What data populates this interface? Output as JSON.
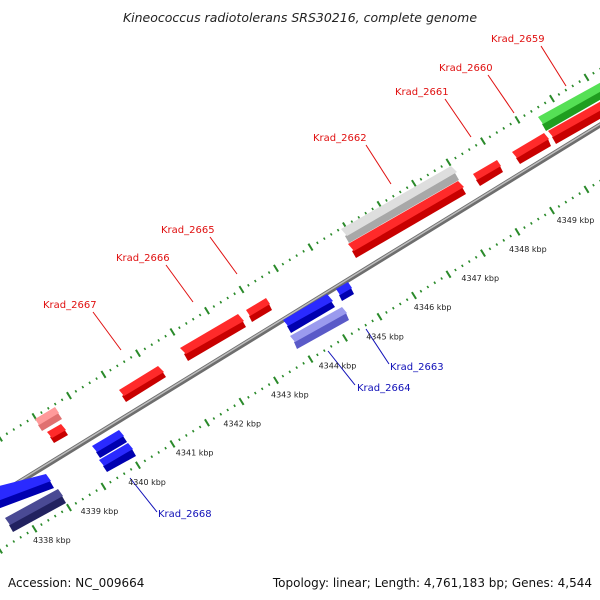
{
  "title": "Kineococcus radiotolerans SRS30216, complete genome",
  "footer": {
    "accession": "Accession: NC_009664",
    "summary": "Topology: linear; Length: 4,761,183 bp; Genes: 4,544"
  },
  "ticks": [
    {
      "kbp": 4338,
      "label": "4338 kbp"
    },
    {
      "kbp": 4339,
      "label": "4339 kbp"
    },
    {
      "kbp": 4340,
      "label": "4340 kbp"
    },
    {
      "kbp": 4341,
      "label": "4341 kbp"
    },
    {
      "kbp": 4342,
      "label": "4342 kbp"
    },
    {
      "kbp": 4343,
      "label": "4343 kbp"
    },
    {
      "kbp": 4344,
      "label": "4344 kbp"
    },
    {
      "kbp": 4345,
      "label": "4345 kbp"
    },
    {
      "kbp": 4346,
      "label": "4346 kbp"
    },
    {
      "kbp": 4347,
      "label": "4347 kbp"
    },
    {
      "kbp": 4348,
      "label": "4348 kbp"
    },
    {
      "kbp": 4349,
      "label": "4349 kbp"
    }
  ],
  "genes": [
    {
      "name": "Krad_2659",
      "color": "#e01010"
    },
    {
      "name": "Krad_2660",
      "color": "#e01010"
    },
    {
      "name": "Krad_2661",
      "color": "#e01010"
    },
    {
      "name": "Krad_2662",
      "color": "#e01010"
    },
    {
      "name": "Krad_2663",
      "color": "#1010b8"
    },
    {
      "name": "Krad_2664",
      "color": "#1010b8"
    },
    {
      "name": "Krad_2665",
      "color": "#e01010"
    },
    {
      "name": "Krad_2666",
      "color": "#e01010"
    },
    {
      "name": "Krad_2667",
      "color": "#e01010"
    },
    {
      "name": "Krad_2668",
      "color": "#1010b8"
    }
  ],
  "colors": {
    "forward": "#ff1a1a",
    "reverse": "#1a1aff",
    "rna": "#33cc33",
    "pseudo_forward": "#ff8080",
    "gray_feature": "#c8c8c8",
    "dark_reverse": "#3a3a80",
    "light_reverse": "#8a8ae0",
    "tick_green": "#2a8a2a",
    "axis_gray": "#8a8a8a"
  }
}
